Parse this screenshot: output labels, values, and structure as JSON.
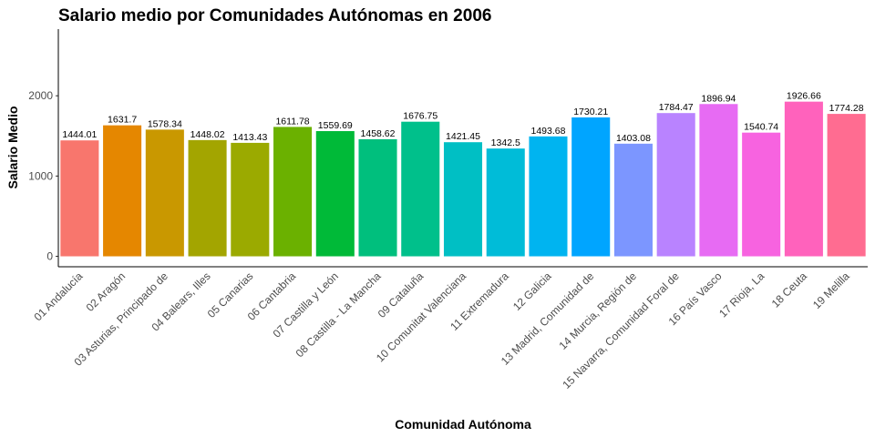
{
  "chart_data": {
    "type": "bar",
    "title": "Salario medio por Comunidades Autónomas en 2006",
    "xlabel": "Comunidad Autónoma",
    "ylabel": "Salario Medio",
    "ylim": [
      -130,
      2830
    ],
    "yticks": [
      0,
      1000,
      2000
    ],
    "ytick_labels": [
      "0",
      "1000",
      "2000"
    ],
    "grid": false,
    "legend": "none",
    "categories": [
      "01 Andalucía",
      "02 Aragón",
      "03 Asturias, Principado de",
      "04 Balears, Illes",
      "05 Canarias",
      "06 Cantabria",
      "07 Castilla y León",
      "08 Castilla - La Mancha",
      "09 Cataluña",
      "10 Comunitat Valenciana",
      "11 Extremadura",
      "12 Galicia",
      "13 Madrid, Comunidad de",
      "14 Murcia, Región de",
      "15 Navarra, Comunidad Foral de",
      "16 País Vasco",
      "17 Rioja, La",
      "18 Ceuta",
      "19 Melilla"
    ],
    "values": [
      1444.01,
      1631.7,
      1578.34,
      1448.02,
      1413.43,
      1611.78,
      1559.69,
      1458.62,
      1676.75,
      1421.45,
      1342.5,
      1493.68,
      1730.21,
      1403.08,
      1784.47,
      1896.94,
      1540.74,
      1926.66,
      1774.28
    ],
    "value_labels": [
      "1444.01",
      "1631.7",
      "1578.34",
      "1448.02",
      "1413.43",
      "1611.78",
      "1559.69",
      "1458.62",
      "1676.75",
      "1421.45",
      "1342.5",
      "1493.68",
      "1730.21",
      "1403.08",
      "1784.47",
      "1896.94",
      "1540.74",
      "1926.66",
      "1774.28"
    ],
    "colors": [
      "#F8766D",
      "#E58700",
      "#C99800",
      "#A3A500",
      "#9BAA00",
      "#6BB100",
      "#00BA38",
      "#00BF7D",
      "#00C08B",
      "#00BFC4",
      "#00BCD8",
      "#00B4F0",
      "#00A5FF",
      "#7C96FF",
      "#B983FF",
      "#E76BF3",
      "#F763E0",
      "#FF62BC",
      "#FF6C91"
    ]
  }
}
